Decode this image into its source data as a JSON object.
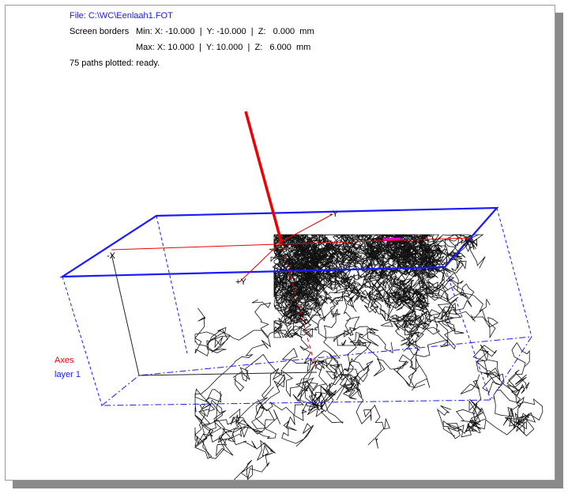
{
  "header": {
    "file": "File:  C:\\WC\\Eenlaah1.FOT",
    "borders_label": "Screen borders",
    "min": "Min: X: -10.000  |  Y: -10.000  |  Z:   0.000  mm",
    "max": "Max: X: 10.000  |  Y: 10.000  |  Z:   6.000  mm",
    "status": "75 paths plotted: ready."
  },
  "axis_labels": [
    "-Y",
    "+X",
    "-X",
    "+Y"
  ],
  "legend": [
    "Axes",
    "layer 1"
  ]
}
